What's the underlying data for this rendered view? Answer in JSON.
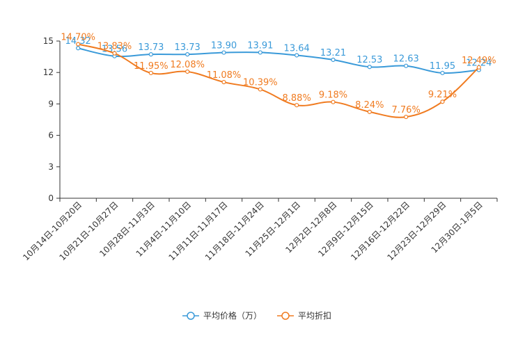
{
  "chart_data": {
    "type": "line",
    "title": "",
    "xlabel": "",
    "ylabel": "",
    "ylim": [
      0,
      15
    ],
    "yticks": [
      0,
      3,
      6,
      9,
      12,
      15
    ],
    "grid": false,
    "legend_position": "bottom-center",
    "categories": [
      "10月14日-10月20日",
      "10月21日-10月27日",
      "10月28日-11月3日",
      "11月4日-11月10日",
      "11月11日-11月17日",
      "11月18日-11月24日",
      "11月25日-12月1日",
      "12月2日-12月8日",
      "12月9日-12月15日",
      "12月16日-12月22日",
      "12月23日-12月29日",
      "12月30日-1月5日"
    ],
    "series": [
      {
        "name": "平均价格（万）",
        "color": "#3a9ad9",
        "values": [
          14.32,
          13.56,
          13.73,
          13.73,
          13.9,
          13.91,
          13.64,
          13.21,
          12.53,
          12.63,
          11.95,
          12.24
        ],
        "labels": [
          "14.32",
          "13.56",
          "13.73",
          "13.73",
          "13.90",
          "13.91",
          "13.64",
          "13.21",
          "12.53",
          "12.63",
          "11.95",
          "12.24"
        ]
      },
      {
        "name": "平均折扣",
        "color": "#f07b20",
        "values": [
          14.7,
          13.83,
          11.95,
          12.08,
          11.08,
          10.39,
          8.88,
          9.18,
          8.24,
          7.76,
          9.21,
          12.49
        ],
        "labels": [
          "14.70%",
          "13.83%",
          "11.95%",
          "12.08%",
          "11.08%",
          "10.39%",
          "8.88%",
          "9.18%",
          "8.24%",
          "7.76%",
          "9.21%",
          "12.49%"
        ]
      }
    ]
  }
}
